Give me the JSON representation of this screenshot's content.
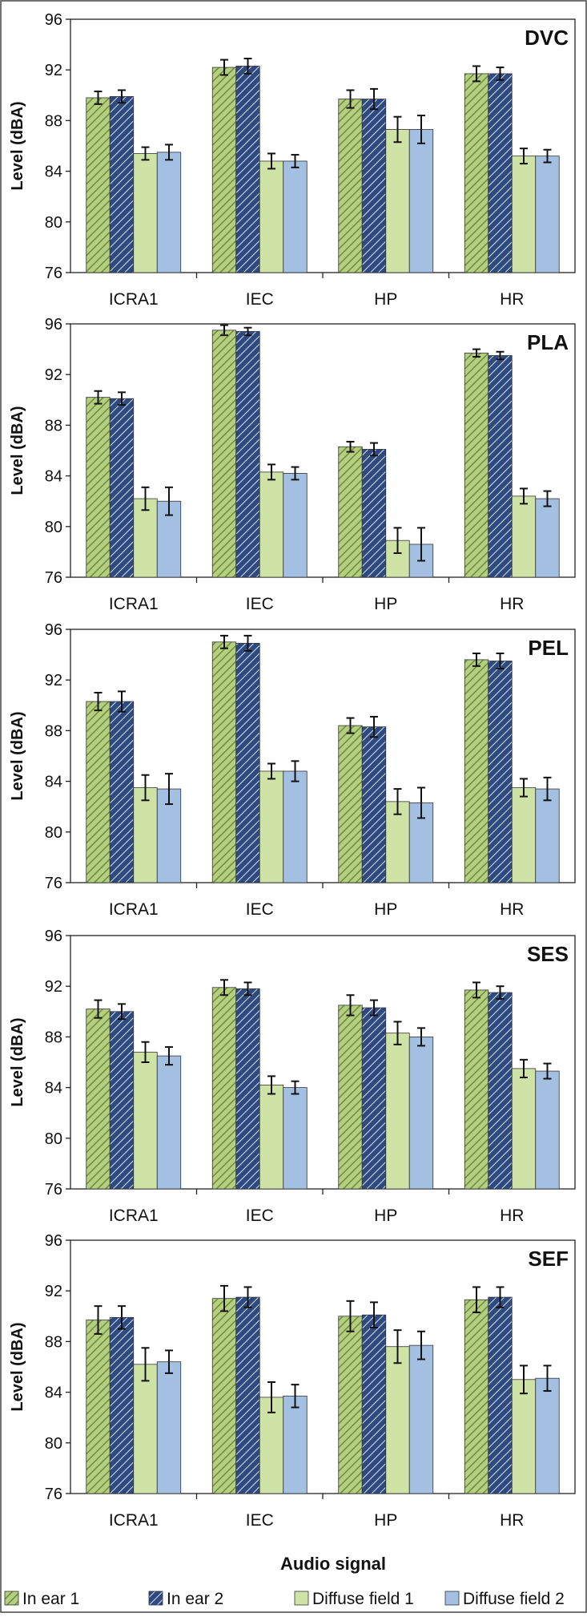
{
  "figure": {
    "xlabel": "Audio signal",
    "colors": {
      "in_ear_1": "#b5cf80",
      "in_ear_2": "#2f4a80",
      "diffuse_field_1": "#cfe3a6",
      "diffuse_field_2": "#a3bfe2",
      "stripe_green": "#6f8a3c",
      "stripe_blue": "#d5e2f2",
      "axis": "#222222",
      "error_bar": "#111111"
    },
    "legend": [
      {
        "label": "In ear 1",
        "key": "in_ear_1"
      },
      {
        "label": "In ear 2",
        "key": "in_ear_2"
      },
      {
        "label": "Diffuse field 1",
        "key": "diffuse_field_1"
      },
      {
        "label": "Diffuse field 2",
        "key": "diffuse_field_2"
      }
    ]
  },
  "chart_data": [
    {
      "type": "bar",
      "title": "DVC",
      "ylabel": "Level (dBA)",
      "ylim": [
        76,
        96
      ],
      "yticks": [
        "96",
        "92",
        "88",
        "84",
        "80",
        "76"
      ],
      "categories": [
        "ICRA1",
        "IEC",
        "HP",
        "HR"
      ],
      "series": [
        {
          "name": "In ear 1",
          "values": [
            89.8,
            92.2,
            89.7,
            91.7
          ],
          "errors": [
            0.5,
            0.6,
            0.7,
            0.6
          ]
        },
        {
          "name": "In ear 2",
          "values": [
            89.9,
            92.3,
            89.7,
            91.7
          ],
          "errors": [
            0.5,
            0.6,
            0.8,
            0.5
          ]
        },
        {
          "name": "Diffuse field 1",
          "values": [
            85.4,
            84.8,
            87.3,
            85.2
          ],
          "errors": [
            0.5,
            0.6,
            1.0,
            0.6
          ]
        },
        {
          "name": "Diffuse field 2",
          "values": [
            85.5,
            84.8,
            87.3,
            85.2
          ],
          "errors": [
            0.6,
            0.5,
            1.1,
            0.5
          ]
        }
      ]
    },
    {
      "type": "bar",
      "title": "PLA",
      "ylabel": "Level (dBA)",
      "ylim": [
        76,
        96
      ],
      "yticks": [
        "96",
        "92",
        "88",
        "84",
        "80",
        "76"
      ],
      "categories": [
        "ICRA1",
        "IEC",
        "HP",
        "HR"
      ],
      "series": [
        {
          "name": "In ear 1",
          "values": [
            90.2,
            95.5,
            86.3,
            93.7
          ],
          "errors": [
            0.5,
            0.4,
            0.4,
            0.3
          ]
        },
        {
          "name": "In ear 2",
          "values": [
            90.1,
            95.4,
            86.1,
            93.5
          ],
          "errors": [
            0.5,
            0.3,
            0.5,
            0.3
          ]
        },
        {
          "name": "Diffuse field 1",
          "values": [
            82.2,
            84.3,
            78.9,
            82.4
          ],
          "errors": [
            0.9,
            0.6,
            1.0,
            0.6
          ]
        },
        {
          "name": "Diffuse field 2",
          "values": [
            82.0,
            84.2,
            78.6,
            82.2
          ],
          "errors": [
            1.1,
            0.5,
            1.3,
            0.6
          ]
        }
      ]
    },
    {
      "type": "bar",
      "title": "PEL",
      "ylabel": "Level (dBA)",
      "ylim": [
        76,
        96
      ],
      "yticks": [
        "96",
        "92",
        "88",
        "84",
        "80",
        "76"
      ],
      "categories": [
        "ICRA1",
        "IEC",
        "HP",
        "HR"
      ],
      "series": [
        {
          "name": "In ear 1",
          "values": [
            90.3,
            95.0,
            88.4,
            93.6
          ],
          "errors": [
            0.7,
            0.5,
            0.6,
            0.5
          ]
        },
        {
          "name": "In ear 2",
          "values": [
            90.3,
            94.9,
            88.3,
            93.5
          ],
          "errors": [
            0.8,
            0.6,
            0.8,
            0.6
          ]
        },
        {
          "name": "Diffuse field 1",
          "values": [
            83.5,
            84.8,
            82.4,
            83.5
          ],
          "errors": [
            1.0,
            0.6,
            1.0,
            0.7
          ]
        },
        {
          "name": "Diffuse field 2",
          "values": [
            83.4,
            84.8,
            82.3,
            83.4
          ],
          "errors": [
            1.2,
            0.8,
            1.2,
            0.9
          ]
        }
      ]
    },
    {
      "type": "bar",
      "title": "SES",
      "ylabel": "Level (dBA)",
      "ylim": [
        76,
        96
      ],
      "yticks": [
        "96",
        "92",
        "88",
        "84",
        "80",
        "76"
      ],
      "categories": [
        "ICRA1",
        "IEC",
        "HP",
        "HR"
      ],
      "series": [
        {
          "name": "In ear 1",
          "values": [
            90.2,
            91.9,
            90.5,
            91.7
          ],
          "errors": [
            0.7,
            0.6,
            0.8,
            0.6
          ]
        },
        {
          "name": "In ear 2",
          "values": [
            90.0,
            91.8,
            90.3,
            91.5
          ],
          "errors": [
            0.6,
            0.5,
            0.6,
            0.5
          ]
        },
        {
          "name": "Diffuse field 1",
          "values": [
            86.8,
            84.2,
            88.3,
            85.5
          ],
          "errors": [
            0.8,
            0.7,
            0.9,
            0.7
          ]
        },
        {
          "name": "Diffuse field 2",
          "values": [
            86.5,
            84.0,
            88.0,
            85.3
          ],
          "errors": [
            0.7,
            0.5,
            0.7,
            0.6
          ]
        }
      ]
    },
    {
      "type": "bar",
      "title": "SEF",
      "ylabel": "Level (dBA)",
      "ylim": [
        76,
        96
      ],
      "yticks": [
        "96",
        "92",
        "88",
        "84",
        "80",
        "76"
      ],
      "categories": [
        "ICRA1",
        "IEC",
        "HP",
        "HR"
      ],
      "series": [
        {
          "name": "In ear 1",
          "values": [
            89.7,
            91.4,
            90.0,
            91.3
          ],
          "errors": [
            1.1,
            1.0,
            1.2,
            1.0
          ]
        },
        {
          "name": "In ear 2",
          "values": [
            89.9,
            91.5,
            90.1,
            91.5
          ],
          "errors": [
            0.9,
            0.8,
            1.0,
            0.8
          ]
        },
        {
          "name": "Diffuse field 1",
          "values": [
            86.2,
            83.6,
            87.6,
            85.0
          ],
          "errors": [
            1.3,
            1.2,
            1.3,
            1.1
          ]
        },
        {
          "name": "Diffuse field 2",
          "values": [
            86.4,
            83.7,
            87.7,
            85.1
          ],
          "errors": [
            0.9,
            0.9,
            1.1,
            1.0
          ]
        }
      ]
    }
  ]
}
